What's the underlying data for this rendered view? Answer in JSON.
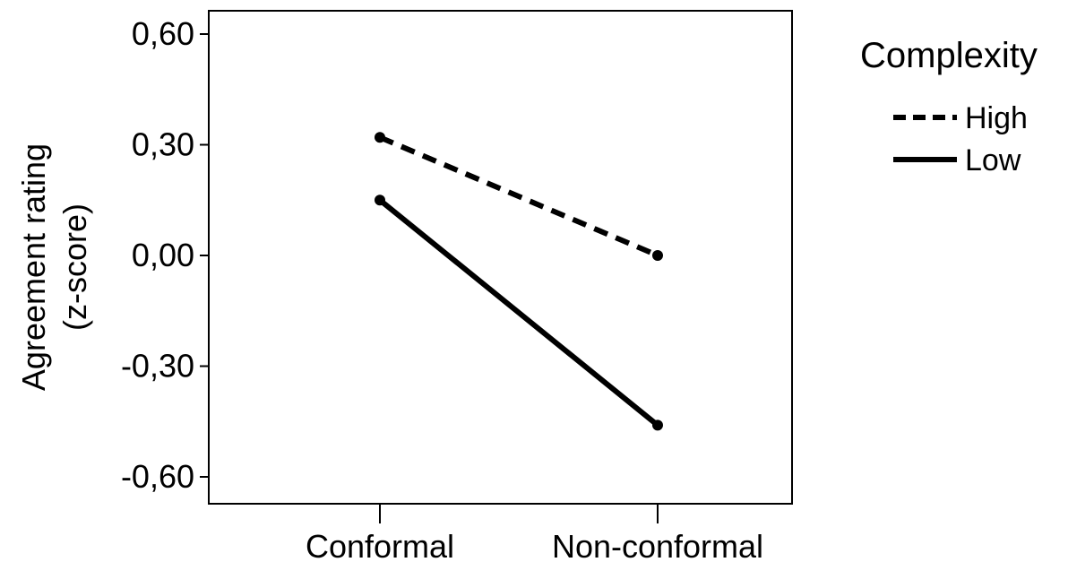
{
  "chart_data": {
    "type": "line",
    "title": "",
    "xlabel": "",
    "ylabel": [
      "Agreement rating",
      "(z-score)"
    ],
    "categories": [
      "Conformal",
      "Non-conformal"
    ],
    "ylim": [
      -0.66,
      0.66
    ],
    "yticks": [
      0.6,
      0.3,
      0.0,
      -0.3,
      -0.6
    ],
    "ytick_labels": [
      "0,60",
      "0,30",
      "0,00",
      "-0,30",
      "-0,60"
    ],
    "grid": false,
    "legend": {
      "title": "Complexity",
      "placement": "right"
    },
    "series": [
      {
        "name": "High",
        "values": [
          0.32,
          0.0
        ],
        "style": "dashed",
        "color": "#000000"
      },
      {
        "name": "Low",
        "values": [
          0.15,
          -0.46
        ],
        "style": "solid",
        "color": "#000000"
      }
    ]
  }
}
